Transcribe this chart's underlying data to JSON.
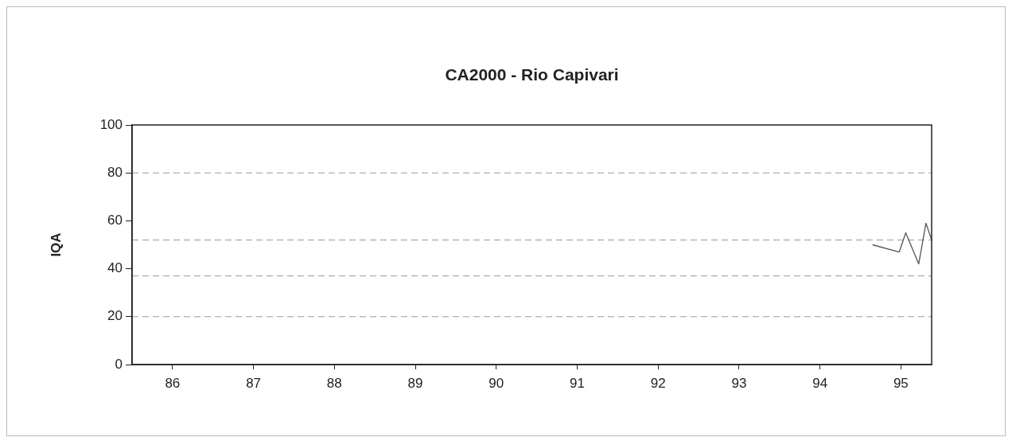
{
  "chart_data": {
    "type": "line",
    "title": "CA2000 - Rio Capivari",
    "ylabel": "IQA",
    "xlim": [
      85.5,
      95.38
    ],
    "xticks": [
      86,
      87,
      88,
      89,
      90,
      91,
      92,
      93,
      94,
      95
    ],
    "ylim": [
      0,
      100
    ],
    "yticks": [
      0,
      20,
      40,
      60,
      80,
      100
    ],
    "series": [
      {
        "color": "#555555",
        "x": [
          94.65,
          94.98,
          95.06,
          95.22,
          95.31,
          95.38
        ],
        "values": [
          50,
          47,
          55,
          42,
          59,
          52
        ]
      }
    ],
    "ref_lines": [
      {
        "axis": "y",
        "value": 80,
        "color": "#999999",
        "line_style": "dashed"
      },
      {
        "axis": "y",
        "value": 52,
        "color": "#999999",
        "line_style": "dashed"
      },
      {
        "axis": "y",
        "value": 37,
        "color": "#999999",
        "line_style": "dashed"
      },
      {
        "axis": "y",
        "value": 20,
        "color": "#999999",
        "line_style": "dashed"
      }
    ],
    "grid": false,
    "legend": false,
    "marker": "none",
    "line_style": "solid"
  }
}
